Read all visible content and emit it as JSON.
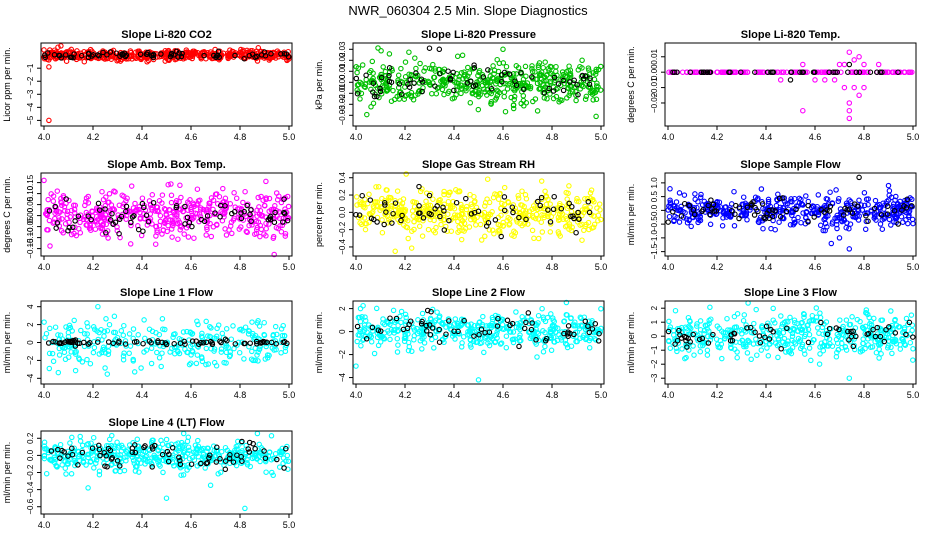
{
  "figure_title": "NWR_060304  2.5 Min. Slope Diagnostics",
  "chart_data": [
    {
      "type": "scatter",
      "title": "Slope Li-820 CO2",
      "ylabel": "Licor ppm per min.",
      "xlim": [
        4.0,
        5.0
      ],
      "ylim": [
        -5.2,
        0.7
      ],
      "xticks": [
        4.0,
        4.2,
        4.4,
        4.6,
        4.8,
        5.0
      ],
      "xtick_labels": [
        "4.0",
        "4.2",
        "4.4",
        "4.6",
        "4.8",
        "5.0"
      ],
      "yticks": [
        -5,
        -4,
        -3,
        -2,
        -1
      ],
      "ytick_labels": [
        "−5",
        "−4",
        "−3",
        "−2",
        "−1"
      ],
      "series": [
        {
          "name": "all",
          "color": "#ff0000",
          "n": 480,
          "seed": 11,
          "center": 0.0,
          "spread": 0.2,
          "outliers": [
            [
              4.02,
              -5.0
            ],
            [
              4.02,
              -0.9
            ],
            [
              4.0,
              0.4
            ]
          ]
        },
        {
          "name": "selected",
          "color": "#000000",
          "n": 70,
          "seed": 12,
          "center": 0.0,
          "spread": 0.15,
          "outliers": []
        }
      ]
    },
    {
      "type": "scatter",
      "title": "Slope Li-820 Pressure",
      "ylabel": "kPa per min.",
      "xlim": [
        4.0,
        5.0
      ],
      "ylim": [
        -0.037,
        0.033
      ],
      "xticks": [
        4.0,
        4.2,
        4.4,
        4.6,
        4.8,
        5.0
      ],
      "xtick_labels": [
        "4.0",
        "4.2",
        "4.4",
        "4.6",
        "4.8",
        "5.0"
      ],
      "yticks": [
        -0.03,
        -0.02,
        -0.01,
        0.0,
        0.01,
        0.02,
        0.03
      ],
      "ytick_labels": [
        "−0.03",
        "−0.02",
        "−0.01",
        "0.00",
        "0.01",
        "0.02",
        "0.03"
      ],
      "series": [
        {
          "name": "all",
          "color": "#00c000",
          "n": 480,
          "seed": 21,
          "center": 0.0,
          "spread": 0.0095,
          "outliers": [
            [
              4.98,
              -0.031
            ],
            [
              4.6,
              0.03
            ]
          ]
        },
        {
          "name": "selected",
          "color": "#000000",
          "n": 65,
          "seed": 22,
          "center": 0.0,
          "spread": 0.007,
          "outliers": [
            [
              4.3,
              0.031
            ],
            [
              4.34,
              0.03
            ]
          ]
        }
      ]
    },
    {
      "type": "scatter",
      "title": "Slope Li-820 Temp.",
      "ylabel": "degrees C per min.",
      "xlim": [
        4.0,
        5.0
      ],
      "ylim": [
        -0.033,
        0.017
      ],
      "xticks": [
        4.0,
        4.2,
        4.4,
        4.6,
        4.8,
        5.0
      ],
      "xtick_labels": [
        "4.0",
        "4.2",
        "4.4",
        "4.6",
        "4.8",
        "5.0"
      ],
      "yticks": [
        -0.02,
        -0.01,
        0.0,
        0.01
      ],
      "ytick_labels": [
        "−0.02",
        "−0.01",
        "0.00",
        "0.01"
      ],
      "series": [
        {
          "name": "all",
          "color": "#ff00ff",
          "n": 160,
          "seed": 31,
          "center": 0.0,
          "spread": 0.0,
          "outliers": [
            [
              4.55,
              0.005
            ],
            [
              4.55,
              -0.025
            ],
            [
              4.7,
              0.005
            ],
            [
              4.72,
              0.005
            ],
            [
              4.74,
              0.013
            ],
            [
              4.74,
              -0.02
            ],
            [
              4.74,
              -0.025
            ],
            [
              4.74,
              -0.03
            ],
            [
              4.76,
              0.008
            ],
            [
              4.76,
              -0.01
            ],
            [
              4.78,
              -0.015
            ],
            [
              4.8,
              0.005
            ],
            [
              4.72,
              -0.01
            ],
            [
              4.6,
              -0.005
            ],
            [
              4.64,
              -0.005
            ],
            [
              4.68,
              -0.005
            ],
            [
              4.86,
              0.005
            ],
            [
              4.46,
              -0.005
            ],
            [
              4.78,
              0.01
            ],
            [
              4.8,
              -0.01
            ]
          ]
        },
        {
          "name": "selected",
          "color": "#000000",
          "n": 40,
          "seed": 32,
          "center": 0.0,
          "spread": 0.0,
          "outliers": [
            [
              4.5,
              -0.005
            ],
            [
              4.74,
              0.005
            ]
          ]
        }
      ]
    },
    {
      "type": "scatter",
      "title": "Slope Amb. Box Temp.",
      "ylabel": "degrees C per min.",
      "xlim": [
        4.0,
        5.0
      ],
      "ylim": [
        -0.17,
        0.18
      ],
      "xticks": [
        4.0,
        4.2,
        4.4,
        4.6,
        4.8,
        5.0
      ],
      "xtick_labels": [
        "4.0",
        "4.2",
        "4.4",
        "4.6",
        "4.8",
        "5.0"
      ],
      "yticks": [
        -0.15,
        -0.1,
        -0.05,
        0.0,
        0.05,
        0.1,
        0.15
      ],
      "ytick_labels": [
        "−0.15",
        "−0.10",
        "−0.05",
        "0.00",
        "0.05",
        "0.10",
        "0.15"
      ],
      "series": [
        {
          "name": "all",
          "color": "#ff00ff",
          "n": 460,
          "seed": 41,
          "center": 0.0,
          "spread": 0.055,
          "outliers": [
            [
              4.0,
              0.16
            ]
          ]
        },
        {
          "name": "selected",
          "color": "#000000",
          "n": 70,
          "seed": 42,
          "center": 0.0,
          "spread": 0.04,
          "outliers": []
        }
      ]
    },
    {
      "type": "scatter",
      "title": "Slope Gas Stream RH",
      "ylabel": "percent per min.",
      "xlim": [
        4.0,
        5.0
      ],
      "ylim": [
        -0.47,
        0.42
      ],
      "xticks": [
        4.0,
        4.2,
        4.4,
        4.6,
        4.8,
        5.0
      ],
      "xtick_labels": [
        "4.0",
        "4.2",
        "4.4",
        "4.6",
        "4.8",
        "5.0"
      ],
      "yticks": [
        -0.4,
        -0.2,
        0.0,
        0.2,
        0.4
      ],
      "ytick_labels": [
        "−0.4",
        "−0.2",
        "0.0",
        "0.2",
        "0.4"
      ],
      "series": [
        {
          "name": "all",
          "color": "#ffff00",
          "n": 460,
          "seed": 51,
          "center": 0.0,
          "spread": 0.13,
          "outliers": [
            [
              4.16,
              -0.45
            ]
          ]
        },
        {
          "name": "selected",
          "color": "#000000",
          "n": 65,
          "seed": 52,
          "center": 0.0,
          "spread": 0.11,
          "outliers": []
        }
      ]
    },
    {
      "type": "scatter",
      "title": "Slope Sample Flow",
      "ylabel": "ml/min per min.",
      "xlim": [
        4.0,
        5.0
      ],
      "ylim": [
        -1.55,
        1.25
      ],
      "xticks": [
        4.0,
        4.2,
        4.4,
        4.6,
        4.8,
        5.0
      ],
      "xtick_labels": [
        "4.0",
        "4.2",
        "4.4",
        "4.6",
        "4.8",
        "5.0"
      ],
      "yticks": [
        -1.5,
        -1.0,
        -0.5,
        0.0,
        0.5,
        1.0
      ],
      "ytick_labels": [
        "−1.5",
        "−1.0",
        "−0.5",
        "0.0",
        "0.5",
        "1.0"
      ],
      "series": [
        {
          "name": "all",
          "color": "#0000ff",
          "n": 440,
          "seed": 61,
          "center": 0.0,
          "spread": 0.3,
          "outliers": [
            [
              4.74,
              -1.4
            ],
            [
              4.7,
              -1.0
            ],
            [
              4.9,
              0.9
            ]
          ]
        },
        {
          "name": "selected",
          "color": "#000000",
          "n": 70,
          "seed": 62,
          "center": 0.0,
          "spread": 0.2,
          "outliers": [
            [
              4.78,
              1.2
            ]
          ]
        }
      ]
    },
    {
      "type": "scatter",
      "title": "Slope Line 1 Flow",
      "ylabel": "ml/min per min.",
      "xlim": [
        4.0,
        5.0
      ],
      "ylim": [
        -4.3,
        4.3
      ],
      "xticks": [
        4.0,
        4.2,
        4.4,
        4.6,
        4.8,
        5.0
      ],
      "xtick_labels": [
        "4.0",
        "4.2",
        "4.4",
        "4.6",
        "4.8",
        "5.0"
      ],
      "yticks": [
        -4,
        -2,
        0,
        2,
        4
      ],
      "ytick_labels": [
        "−4",
        "−2",
        "0",
        "2",
        "4"
      ],
      "series": [
        {
          "name": "all",
          "color": "#00ffff",
          "n": 300,
          "seed": 71,
          "center": 0.0,
          "spread": 1.3,
          "outliers": [
            [
              4.22,
              4.0
            ]
          ]
        },
        {
          "name": "selected",
          "color": "#000000",
          "n": 75,
          "seed": 72,
          "center": 0.0,
          "spread": 0.12,
          "outliers": []
        }
      ]
    },
    {
      "type": "scatter",
      "title": "Slope Line 2 Flow",
      "ylabel": "ml/min per min.",
      "xlim": [
        4.0,
        5.0
      ],
      "ylim": [
        -4.3,
        2.4
      ],
      "xticks": [
        4.0,
        4.2,
        4.4,
        4.6,
        4.8,
        5.0
      ],
      "xtick_labels": [
        "4.0",
        "4.2",
        "4.4",
        "4.6",
        "4.8",
        "5.0"
      ],
      "yticks": [
        -4,
        -2,
        0,
        2
      ],
      "ytick_labels": [
        "−4",
        "−2",
        "0",
        "2"
      ],
      "series": [
        {
          "name": "all",
          "color": "#00ffff",
          "n": 440,
          "seed": 81,
          "center": 0.1,
          "spread": 0.8,
          "outliers": [
            [
              4.5,
              -4.2
            ],
            [
              4.0,
              -3.0
            ]
          ]
        },
        {
          "name": "selected",
          "color": "#000000",
          "n": 60,
          "seed": 82,
          "center": 0.2,
          "spread": 0.6,
          "outliers": []
        }
      ]
    },
    {
      "type": "scatter",
      "title": "Slope Line 3 Flow",
      "ylabel": "ml/min per min.",
      "xlim": [
        4.0,
        5.0
      ],
      "ylim": [
        -3.2,
        2.3
      ],
      "xticks": [
        4.0,
        4.2,
        4.4,
        4.6,
        4.8,
        5.0
      ],
      "xtick_labels": [
        "4.0",
        "4.2",
        "4.4",
        "4.6",
        "4.8",
        "5.0"
      ],
      "yticks": [
        -3,
        -2,
        -1,
        0,
        1,
        2
      ],
      "ytick_labels": [
        "−3",
        "−2",
        "−1",
        "0",
        "1",
        "2"
      ],
      "series": [
        {
          "name": "all",
          "color": "#00ffff",
          "n": 440,
          "seed": 91,
          "center": 0.0,
          "spread": 0.8,
          "outliers": [
            [
              4.74,
              -3.0
            ],
            [
              4.36,
              1.9
            ]
          ]
        },
        {
          "name": "selected",
          "color": "#000000",
          "n": 60,
          "seed": 92,
          "center": 0.0,
          "spread": 0.45,
          "outliers": []
        }
      ]
    },
    {
      "type": "scatter",
      "title": "Slope Line 4 (LT) Flow",
      "ylabel": "ml/min per min.",
      "xlim": [
        4.0,
        5.0
      ],
      "ylim": [
        -0.65,
        0.25
      ],
      "xticks": [
        4.0,
        4.2,
        4.4,
        4.6,
        4.8,
        5.0
      ],
      "xtick_labels": [
        "4.0",
        "4.2",
        "4.4",
        "4.6",
        "4.8",
        "5.0"
      ],
      "yticks": [
        -0.6,
        -0.4,
        -0.2,
        0.0,
        0.2
      ],
      "ytick_labels": [
        "−0.6",
        "−0.4",
        "−0.2",
        "0.0",
        "0.2"
      ],
      "series": [
        {
          "name": "all",
          "color": "#00ffff",
          "n": 440,
          "seed": 101,
          "center": 0.0,
          "spread": 0.09,
          "outliers": [
            [
              4.82,
              -0.62
            ],
            [
              4.5,
              -0.5
            ],
            [
              4.18,
              -0.38
            ],
            [
              4.68,
              -0.35
            ]
          ]
        },
        {
          "name": "selected",
          "color": "#000000",
          "n": 70,
          "seed": 102,
          "center": 0.0,
          "spread": 0.07,
          "outliers": []
        }
      ]
    }
  ]
}
